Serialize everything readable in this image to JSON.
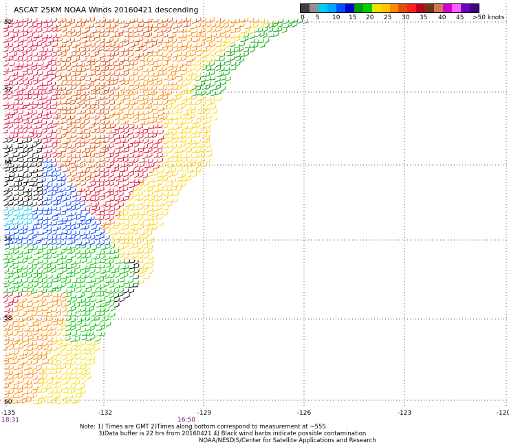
{
  "title": "ASCAT 25KM NOAA Winds 20160421 descending",
  "colorbar": {
    "colors": [
      "#404040",
      "#909090",
      "#00d0f0",
      "#00a8ff",
      "#0050ff",
      "#0000c8",
      "#00a000",
      "#00d000",
      "#f0e000",
      "#ffc800",
      "#ff8800",
      "#e05000",
      "#ff2020",
      "#c00020",
      "#703818",
      "#d07858",
      "#d000d0",
      "#ff60ff",
      "#7000c0",
      "#400080"
    ],
    "labels": [
      "0",
      "5",
      "10",
      "15",
      "20",
      "25",
      "30",
      "35",
      "40",
      "45",
      ">50 knots"
    ]
  },
  "lat_labels": [
    "52",
    "54",
    "56",
    "58",
    "60"
  ],
  "lat_label_top": "52",
  "lon_labels": [
    "-135",
    "-132",
    "-129",
    "-126",
    "-123",
    "-120"
  ],
  "time_labels": [
    "18:31",
    "16:50"
  ],
  "notes": [
    "Note: 1) Times are GMT 2)Times along bottom correspond to measurement at ~55S",
    "3)Data buffer is 22 hrs from 20160421 4) Black wind barbs indicate possible contamination",
    "NOAA/NESDIS/Center for Satellite Applications and Research"
  ]
}
